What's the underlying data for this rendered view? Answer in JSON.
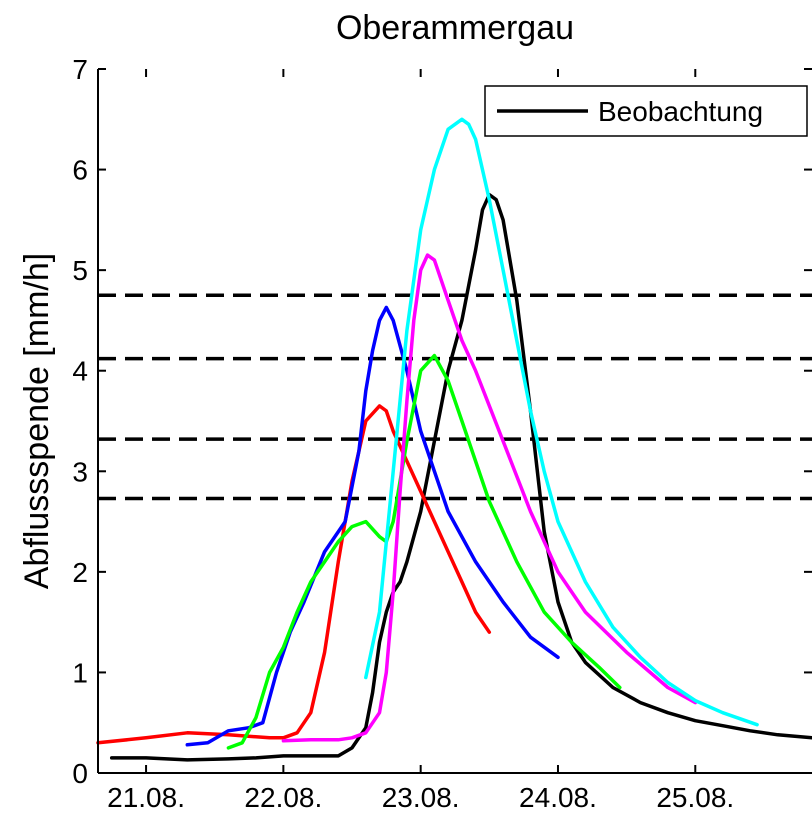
{
  "chart_data": {
    "type": "line",
    "title": "Oberammergau",
    "xlabel": "",
    "ylabel": "Abflussspende [mm/h]",
    "xlim": [
      20.65,
      25.85
    ],
    "ylim": [
      0,
      7
    ],
    "x_ticks": [
      21,
      22,
      23,
      24,
      25
    ],
    "x_tick_labels": [
      "21.08.",
      "22.08.",
      "23.08.",
      "24.08.",
      "25.08."
    ],
    "y_ticks": [
      0,
      1,
      2,
      3,
      4,
      5,
      6,
      7
    ],
    "y_tick_labels": [
      "0",
      "1",
      "2",
      "3",
      "4",
      "5",
      "6",
      "7"
    ],
    "grid": false,
    "legend": {
      "placement": "top-right",
      "entries": [
        {
          "label": "Beobachtung",
          "color": "#000000"
        }
      ]
    },
    "thresholds": [
      {
        "value": 4.75,
        "style": "dashed",
        "color": "#000000"
      },
      {
        "value": 4.12,
        "style": "dashed",
        "color": "#000000"
      },
      {
        "value": 3.32,
        "style": "dashed",
        "color": "#000000"
      },
      {
        "value": 2.73,
        "style": "dashed",
        "color": "#000000"
      }
    ],
    "series": [
      {
        "name": "Beobachtung",
        "color": "#000000",
        "x": [
          20.75,
          21.0,
          21.3,
          21.6,
          21.8,
          22.0,
          22.2,
          22.4,
          22.5,
          22.6,
          22.65,
          22.7,
          22.75,
          22.8,
          22.85,
          22.9,
          23.0,
          23.1,
          23.2,
          23.3,
          23.4,
          23.45,
          23.5,
          23.55,
          23.6,
          23.7,
          23.8,
          23.9,
          24.0,
          24.1,
          24.2,
          24.4,
          24.6,
          24.8,
          25.0,
          25.2,
          25.4,
          25.6,
          25.85
        ],
        "y": [
          0.15,
          0.15,
          0.13,
          0.14,
          0.15,
          0.17,
          0.17,
          0.17,
          0.25,
          0.45,
          0.8,
          1.3,
          1.6,
          1.8,
          1.9,
          2.1,
          2.6,
          3.3,
          4.0,
          4.5,
          5.2,
          5.6,
          5.75,
          5.7,
          5.5,
          4.7,
          3.6,
          2.4,
          1.7,
          1.3,
          1.1,
          0.85,
          0.7,
          0.6,
          0.52,
          0.47,
          0.42,
          0.38,
          0.35
        ]
      },
      {
        "color": "#ff0000",
        "x": [
          20.65,
          21.0,
          21.3,
          21.6,
          21.9,
          22.0,
          22.1,
          22.2,
          22.3,
          22.4,
          22.5,
          22.55,
          22.6,
          22.7,
          22.75,
          22.8,
          22.9,
          23.0,
          23.1,
          23.2,
          23.3,
          23.4,
          23.5
        ],
        "y": [
          0.3,
          0.35,
          0.4,
          0.38,
          0.35,
          0.35,
          0.4,
          0.6,
          1.2,
          2.1,
          2.9,
          3.2,
          3.5,
          3.65,
          3.6,
          3.4,
          3.1,
          2.8,
          2.5,
          2.2,
          1.9,
          1.6,
          1.4
        ]
      },
      {
        "color": "#0000ff",
        "x": [
          21.3,
          21.45,
          21.6,
          21.75,
          21.85,
          21.95,
          22.05,
          22.15,
          22.3,
          22.45,
          22.55,
          22.6,
          22.65,
          22.7,
          22.75,
          22.8,
          22.9,
          23.0,
          23.1,
          23.2,
          23.4,
          23.6,
          23.8,
          24.0
        ],
        "y": [
          0.28,
          0.3,
          0.42,
          0.45,
          0.5,
          1.0,
          1.4,
          1.7,
          2.2,
          2.5,
          3.2,
          3.8,
          4.2,
          4.5,
          4.63,
          4.5,
          4.0,
          3.4,
          3.0,
          2.6,
          2.1,
          1.7,
          1.35,
          1.15
        ]
      },
      {
        "color": "#00ff00",
        "x": [
          21.6,
          21.7,
          21.8,
          21.9,
          22.0,
          22.1,
          22.2,
          22.3,
          22.4,
          22.5,
          22.6,
          22.7,
          22.75,
          22.8,
          22.9,
          23.0,
          23.1,
          23.2,
          23.3,
          23.5,
          23.7,
          23.9,
          24.1,
          24.3,
          24.45
        ],
        "y": [
          0.25,
          0.3,
          0.55,
          1.0,
          1.25,
          1.6,
          1.9,
          2.1,
          2.3,
          2.45,
          2.5,
          2.35,
          2.3,
          2.5,
          3.3,
          4.0,
          4.15,
          3.9,
          3.5,
          2.7,
          2.1,
          1.6,
          1.3,
          1.05,
          0.85
        ]
      },
      {
        "color": "#ff00ff",
        "x": [
          22.0,
          22.2,
          22.4,
          22.5,
          22.6,
          22.7,
          22.75,
          22.8,
          22.85,
          22.9,
          22.95,
          23.0,
          23.05,
          23.1,
          23.2,
          23.3,
          23.4,
          23.6,
          23.8,
          24.0,
          24.2,
          24.5,
          24.8,
          25.0
        ],
        "y": [
          0.32,
          0.33,
          0.33,
          0.35,
          0.4,
          0.6,
          1.0,
          1.8,
          2.8,
          3.7,
          4.5,
          5.0,
          5.15,
          5.1,
          4.7,
          4.3,
          4.0,
          3.3,
          2.6,
          2.0,
          1.6,
          1.2,
          0.85,
          0.7
        ]
      },
      {
        "color": "#00ffff",
        "x": [
          22.6,
          22.7,
          22.8,
          22.9,
          23.0,
          23.1,
          23.2,
          23.3,
          23.35,
          23.4,
          23.5,
          23.6,
          23.7,
          23.8,
          23.9,
          24.0,
          24.2,
          24.4,
          24.6,
          24.8,
          25.0,
          25.2,
          25.45
        ],
        "y": [
          0.95,
          1.6,
          3.0,
          4.4,
          5.4,
          6.0,
          6.4,
          6.5,
          6.45,
          6.3,
          5.7,
          5.0,
          4.3,
          3.6,
          3.0,
          2.5,
          1.9,
          1.45,
          1.15,
          0.9,
          0.72,
          0.6,
          0.48
        ]
      }
    ]
  }
}
